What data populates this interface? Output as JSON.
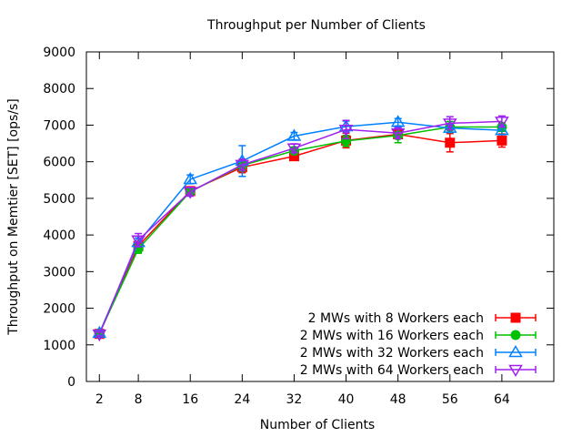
{
  "chart_data": {
    "type": "line",
    "title": "Throughput per Number of Clients",
    "xlabel": "Number of Clients",
    "ylabel": "Throughput on Memtier [SET] [ops/s]",
    "categories": [
      "2",
      "8",
      "16",
      "24",
      "32",
      "40",
      "48",
      "56",
      "64"
    ],
    "x_numeric": [
      2,
      8,
      16,
      24,
      32,
      40,
      48,
      56,
      64
    ],
    "xlim": [
      0,
      72
    ],
    "ylim": [
      0,
      9000
    ],
    "yticks": [
      "0",
      "1000",
      "2000",
      "3000",
      "4000",
      "5000",
      "6000",
      "7000",
      "8000",
      "9000"
    ],
    "grid": false,
    "legend_position": "bottom-right",
    "series": [
      {
        "name": "2 MWs with 8 Workers each",
        "color": "#ff0000",
        "marker": "filled-square",
        "values": [
          1300,
          3700,
          5200,
          5850,
          6150,
          6580,
          6750,
          6520,
          6580
        ],
        "errors": [
          60,
          120,
          100,
          150,
          100,
          200,
          120,
          250,
          180
        ]
      },
      {
        "name": "2 MWs with 16 Workers each",
        "color": "#00c000",
        "marker": "filled-circle",
        "values": [
          1310,
          3620,
          5180,
          5900,
          6300,
          6570,
          6720,
          6950,
          6950
        ],
        "errors": [
          60,
          120,
          100,
          150,
          100,
          150,
          200,
          150,
          120
        ]
      },
      {
        "name": "2 MWs with 32 Workers each",
        "color": "#0080ff",
        "marker": "open-triangle-up",
        "values": [
          1320,
          3800,
          5520,
          6020,
          6700,
          6960,
          7080,
          6920,
          6860
        ],
        "errors": [
          60,
          120,
          120,
          420,
          100,
          150,
          100,
          120,
          120
        ]
      },
      {
        "name": "2 MWs with 64 Workers each",
        "color": "#a020f0",
        "marker": "open-triangle-down",
        "values": [
          1290,
          3860,
          5180,
          5920,
          6370,
          6880,
          6780,
          7050,
          7100
        ],
        "errors": [
          60,
          180,
          120,
          150,
          120,
          250,
          150,
          180,
          150
        ]
      }
    ]
  }
}
